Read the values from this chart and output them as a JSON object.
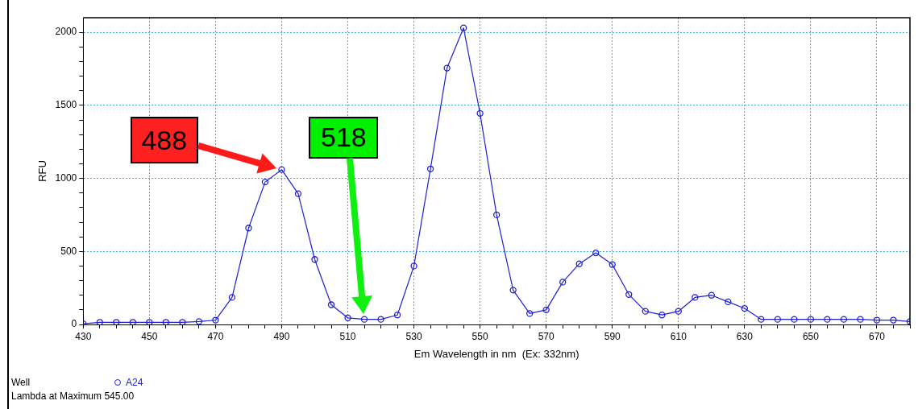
{
  "chart_data": {
    "type": "line",
    "xlabel": "Em Wavelength in nm  (Ex: 332nm)",
    "ylabel": "RFU",
    "legend_title": "Well",
    "legend": "bottom left",
    "marker": "circle",
    "grid": true,
    "x": [
      430,
      435,
      440,
      445,
      450,
      455,
      460,
      465,
      470,
      475,
      480,
      485,
      490,
      495,
      500,
      505,
      510,
      515,
      520,
      525,
      530,
      535,
      540,
      545,
      550,
      555,
      560,
      565,
      570,
      575,
      580,
      585,
      590,
      595,
      600,
      605,
      610,
      615,
      620,
      625,
      630,
      635,
      640,
      645,
      650,
      655,
      660,
      665,
      670,
      675,
      680
    ],
    "series": [
      {
        "name": "A24",
        "color": "#1f1fd6",
        "values": [
          5,
          15,
          15,
          15,
          15,
          15,
          15,
          20,
          30,
          185,
          660,
          975,
          1060,
          895,
          445,
          135,
          45,
          35,
          35,
          65,
          400,
          1065,
          1755,
          2030,
          1445,
          750,
          235,
          75,
          100,
          290,
          415,
          490,
          410,
          205,
          90,
          65,
          90,
          185,
          200,
          155,
          110,
          35,
          35,
          35,
          35,
          35,
          35,
          35,
          30,
          30,
          20
        ]
      }
    ],
    "xlim": [
      430,
      680
    ],
    "xticks": [
      430,
      {
        "value": 435,
        "label": null
      },
      {
        "value": 440,
        "label": null
      },
      {
        "value": 445,
        "label": null
      },
      450,
      {
        "value": 455,
        "label": null
      },
      {
        "value": 460,
        "label": null
      },
      {
        "value": 465,
        "label": null
      },
      470,
      {
        "value": 475,
        "label": null
      },
      {
        "value": 480,
        "label": null
      },
      {
        "value": 485,
        "label": null
      },
      490,
      {
        "value": 495,
        "label": null
      },
      {
        "value": 500,
        "label": null
      },
      {
        "value": 505,
        "label": null
      },
      510,
      {
        "value": 515,
        "label": null
      },
      {
        "value": 520,
        "label": null
      },
      {
        "value": 525,
        "label": null
      },
      530,
      {
        "value": 535,
        "label": null
      },
      {
        "value": 540,
        "label": null
      },
      {
        "value": 545,
        "label": null
      },
      550,
      {
        "value": 555,
        "label": null
      },
      {
        "value": 560,
        "label": null
      },
      {
        "value": 565,
        "label": null
      },
      570,
      {
        "value": 575,
        "label": null
      },
      {
        "value": 580,
        "label": null
      },
      {
        "value": 585,
        "label": null
      },
      590,
      {
        "value": 595,
        "label": null
      },
      {
        "value": 600,
        "label": null
      },
      {
        "value": 605,
        "label": null
      },
      610,
      {
        "value": 615,
        "label": null
      },
      {
        "value": 620,
        "label": null
      },
      {
        "value": 625,
        "label": null
      },
      630,
      {
        "value": 635,
        "label": null
      },
      {
        "value": 640,
        "label": null
      },
      {
        "value": 645,
        "label": null
      },
      650,
      {
        "value": 655,
        "label": null
      },
      {
        "value": 660,
        "label": null
      },
      {
        "value": 665,
        "label": null
      },
      670,
      {
        "value": 675,
        "label": null
      },
      {
        "value": 680,
        "label": null
      }
    ],
    "ylim": [
      0,
      2100
    ],
    "yticks": [
      0,
      {
        "value": 100,
        "label": null
      },
      {
        "value": 200,
        "label": null
      },
      {
        "value": 300,
        "label": null
      },
      {
        "value": 400,
        "label": null
      },
      500,
      {
        "value": 600,
        "label": null
      },
      {
        "value": 700,
        "label": null
      },
      {
        "value": 800,
        "label": null
      },
      {
        "value": 900,
        "label": null
      },
      1000,
      {
        "value": 1100,
        "label": null
      },
      {
        "value": 1200,
        "label": null
      },
      {
        "value": 1300,
        "label": null
      },
      {
        "value": 1400,
        "label": null
      },
      1500,
      {
        "value": 1600,
        "label": null
      },
      {
        "value": 1700,
        "label": null
      },
      {
        "value": 1800,
        "label": null
      },
      {
        "value": 1900,
        "label": null
      },
      2000
    ],
    "annotations": [
      "488",
      "518",
      "Lambda at Maximum 545.00"
    ]
  }
}
